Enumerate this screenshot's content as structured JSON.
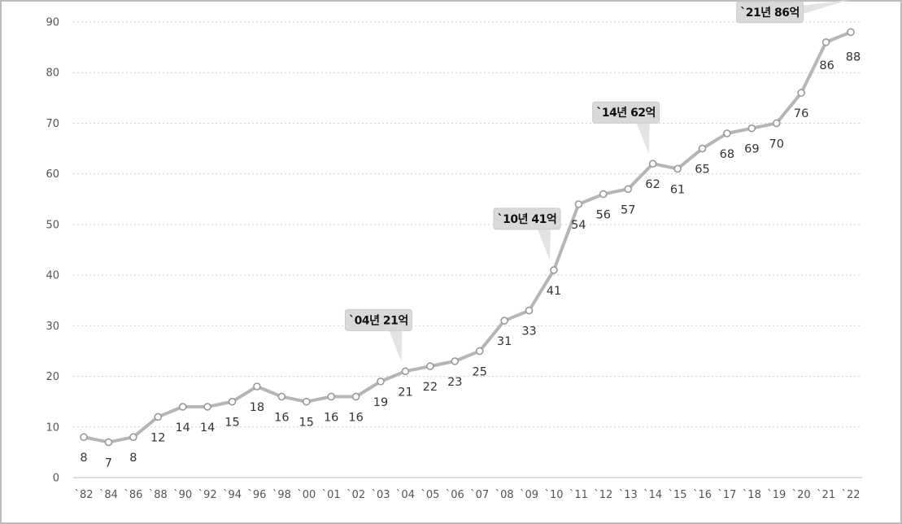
{
  "chart_data": {
    "type": "line",
    "x": [
      "`82",
      "`84",
      "`86",
      "`88",
      "`90",
      "`92",
      "`94",
      "`96",
      "`98",
      "`00",
      "`01",
      "`02",
      "`03",
      "`04",
      "`05",
      "`06",
      "`07",
      "`08",
      "`09",
      "`10",
      "`11",
      "`12",
      "`13",
      "`14",
      "`15",
      "`16",
      "`17",
      "`18",
      "`19",
      "`20",
      "`21",
      "`22"
    ],
    "values": [
      8,
      7,
      8,
      12,
      14,
      14,
      15,
      18,
      16,
      15,
      16,
      16,
      19,
      21,
      22,
      23,
      25,
      31,
      33,
      41,
      54,
      56,
      57,
      62,
      61,
      65,
      68,
      69,
      70,
      76,
      86,
      88
    ],
    "data_labels": [
      "8",
      "7",
      "8",
      "12",
      "14",
      "14",
      "15",
      "18",
      "16",
      "15",
      "16",
      "16",
      "19",
      "21",
      "22",
      "23",
      "25",
      "31",
      "33",
      "41",
      "54",
      "56",
      "57",
      "62",
      "61",
      "65",
      "68",
      "69",
      "70",
      "76",
      "86",
      "88"
    ],
    "y_ticks": [
      "0",
      "10",
      "20",
      "30",
      "40",
      "50",
      "60",
      "70",
      "80",
      "90"
    ],
    "ylim": [
      0,
      90
    ],
    "grid": "horizontal dotted",
    "legend": "none",
    "line_color": "#b5b5b5",
    "marker_fill": "#ffffff",
    "marker_stroke": "#999999",
    "annotations": [
      {
        "text": "`04년 21억",
        "x": "`04"
      },
      {
        "text": "`10년 41억",
        "x": "`10"
      },
      {
        "text": "`14년 62억",
        "x": "`14"
      },
      {
        "text": "`21년 86억",
        "x": "`21"
      }
    ]
  }
}
